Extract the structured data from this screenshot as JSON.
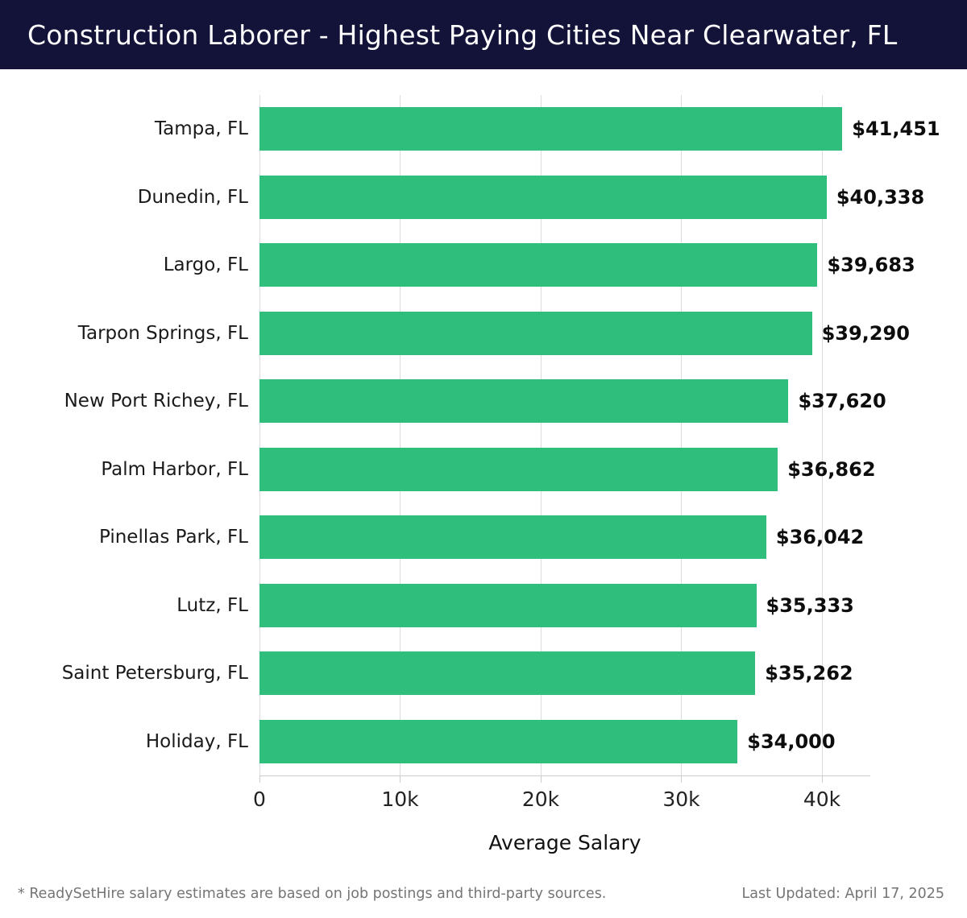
{
  "header": {
    "title": "Construction Laborer - Highest Paying Cities Near Clearwater, FL",
    "bg_color": "#131238",
    "text_color": "#ffffff"
  },
  "chart_data": {
    "type": "bar",
    "orientation": "horizontal",
    "title": "Construction Laborer - Highest Paying Cities Near Clearwater, FL",
    "categories": [
      "Tampa, FL",
      "Dunedin, FL",
      "Largo, FL",
      "Tarpon Springs, FL",
      "New Port Richey, FL",
      "Palm Harbor, FL",
      "Pinellas Park, FL",
      "Lutz, FL",
      "Saint Petersburg, FL",
      "Holiday, FL"
    ],
    "values": [
      41451,
      40338,
      39683,
      39290,
      37620,
      36862,
      36042,
      35333,
      35262,
      34000
    ],
    "value_labels": [
      "$41,451",
      "$40,338",
      "$39,683",
      "$39,290",
      "$37,620",
      "$36,862",
      "$36,042",
      "$35,333",
      "$35,262",
      "$34,000"
    ],
    "xlabel": "Average Salary",
    "ylabel": "",
    "x_ticks": [
      "0",
      "10k",
      "20k",
      "30k",
      "40k"
    ],
    "x_tick_values": [
      0,
      10000,
      20000,
      30000,
      40000
    ],
    "xlim": [
      0,
      43440
    ],
    "grid": true,
    "legend": false,
    "bar_color": "#2fbe7c",
    "gridline_color": "#dcdcdc",
    "axis_line_color": "#cccccc"
  },
  "footer": {
    "note": "* ReadySetHire salary estimates are based on job postings and third-party sources.",
    "last_updated": "Last Updated: April 17, 2025"
  }
}
